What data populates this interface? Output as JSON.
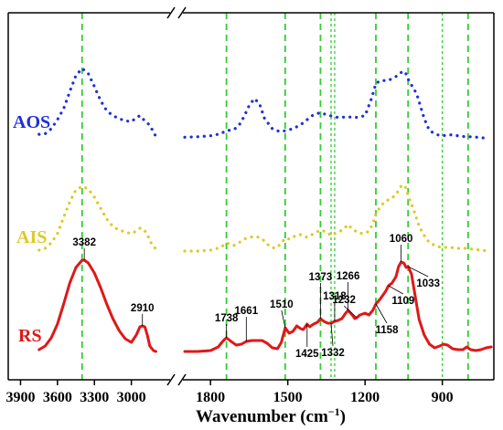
{
  "chart_data": {
    "type": "line",
    "title": "",
    "xlabel": "Wavenumber (cm",
    "xlabel_sup": "−1",
    "xlabel_close": ")",
    "ylabel": "",
    "x_reversed": true,
    "x_break": true,
    "x_segments": [
      {
        "xlim": [
          4000,
          2700
        ],
        "ticks": [
          3900,
          3600,
          3300,
          3000
        ]
      },
      {
        "xlim": [
          1900,
          700
        ],
        "ticks": [
          1800,
          1500,
          1200,
          900
        ]
      }
    ],
    "tick_labels": [
      "3900",
      "3600",
      "3300",
      "3000",
      "1800",
      "1500",
      "1200",
      "900"
    ],
    "grid": false,
    "legend": "inline-left",
    "reference_lines": {
      "color": "#33cc33",
      "x": [
        3400,
        1738,
        1510,
        1373,
        1332,
        1318,
        1158,
        1033,
        900,
        800
      ]
    },
    "series": [
      {
        "name": "AOS",
        "color": "#1f2fd8",
        "style": "dotted",
        "points": [
          [
            3750,
            0.045
          ],
          [
            3700,
            0.05
          ],
          [
            3650,
            0.1
          ],
          [
            3600,
            0.19
          ],
          [
            3550,
            0.3
          ],
          [
            3500,
            0.47
          ],
          [
            3450,
            0.63
          ],
          [
            3400,
            0.7
          ],
          [
            3350,
            0.65
          ],
          [
            3300,
            0.52
          ],
          [
            3250,
            0.38
          ],
          [
            3200,
            0.28
          ],
          [
            3150,
            0.23
          ],
          [
            3100,
            0.2
          ],
          [
            3050,
            0.18
          ],
          [
            3000,
            0.17
          ],
          [
            2960,
            0.21
          ],
          [
            2930,
            0.23
          ],
          [
            2900,
            0.19
          ],
          [
            2870,
            0.16
          ],
          [
            2850,
            0.13
          ],
          [
            2820,
            0.07
          ],
          [
            2800,
            0.02
          ],
          [
            1900,
            0.015
          ],
          [
            1850,
            0.02
          ],
          [
            1800,
            0.03
          ],
          [
            1760,
            0.05
          ],
          [
            1740,
            0.08
          ],
          [
            1710,
            0.09
          ],
          [
            1690,
            0.13
          ],
          [
            1670,
            0.22
          ],
          [
            1650,
            0.33
          ],
          [
            1630,
            0.4
          ],
          [
            1610,
            0.35
          ],
          [
            1590,
            0.2
          ],
          [
            1560,
            0.1
          ],
          [
            1530,
            0.07
          ],
          [
            1510,
            0.08
          ],
          [
            1480,
            0.1
          ],
          [
            1450,
            0.14
          ],
          [
            1420,
            0.2
          ],
          [
            1400,
            0.24
          ],
          [
            1373,
            0.26
          ],
          [
            1350,
            0.24
          ],
          [
            1320,
            0.22
          ],
          [
            1300,
            0.21
          ],
          [
            1270,
            0.22
          ],
          [
            1240,
            0.21
          ],
          [
            1200,
            0.23
          ],
          [
            1175,
            0.4
          ],
          [
            1158,
            0.55
          ],
          [
            1140,
            0.58
          ],
          [
            1110,
            0.58
          ],
          [
            1080,
            0.62
          ],
          [
            1060,
            0.66
          ],
          [
            1045,
            0.67
          ],
          [
            1030,
            0.58
          ],
          [
            1000,
            0.45
          ],
          [
            970,
            0.2
          ],
          [
            950,
            0.08
          ],
          [
            920,
            0.04
          ],
          [
            900,
            0.03
          ],
          [
            870,
            0.04
          ],
          [
            840,
            0.03
          ],
          [
            810,
            0.02
          ],
          [
            780,
            0.02
          ],
          [
            750,
            0.01
          ],
          [
            720,
            0.005
          ]
        ]
      },
      {
        "name": "AIS",
        "color": "#e0c828",
        "style": "dotted",
        "points": [
          [
            3750,
            0.02
          ],
          [
            3700,
            0.04
          ],
          [
            3650,
            0.1
          ],
          [
            3600,
            0.2
          ],
          [
            3550,
            0.38
          ],
          [
            3500,
            0.55
          ],
          [
            3450,
            0.68
          ],
          [
            3400,
            0.72
          ],
          [
            3350,
            0.69
          ],
          [
            3300,
            0.6
          ],
          [
            3250,
            0.48
          ],
          [
            3200,
            0.36
          ],
          [
            3150,
            0.28
          ],
          [
            3100,
            0.24
          ],
          [
            3050,
            0.22
          ],
          [
            3000,
            0.2
          ],
          [
            2960,
            0.23
          ],
          [
            2930,
            0.26
          ],
          [
            2900,
            0.25
          ],
          [
            2870,
            0.19
          ],
          [
            2840,
            0.1
          ],
          [
            2800,
            0.03
          ],
          [
            1900,
            0.01
          ],
          [
            1850,
            0.01
          ],
          [
            1800,
            0.02
          ],
          [
            1760,
            0.05
          ],
          [
            1738,
            0.1
          ],
          [
            1710,
            0.07
          ],
          [
            1690,
            0.1
          ],
          [
            1670,
            0.14
          ],
          [
            1650,
            0.16
          ],
          [
            1630,
            0.17
          ],
          [
            1610,
            0.16
          ],
          [
            1590,
            0.12
          ],
          [
            1570,
            0.06
          ],
          [
            1550,
            0.04
          ],
          [
            1530,
            0.08
          ],
          [
            1510,
            0.15
          ],
          [
            1490,
            0.14
          ],
          [
            1470,
            0.18
          ],
          [
            1450,
            0.19
          ],
          [
            1425,
            0.16
          ],
          [
            1400,
            0.2
          ],
          [
            1373,
            0.24
          ],
          [
            1350,
            0.22
          ],
          [
            1332,
            0.18
          ],
          [
            1318,
            0.2
          ],
          [
            1300,
            0.22
          ],
          [
            1280,
            0.26
          ],
          [
            1266,
            0.3
          ],
          [
            1250,
            0.25
          ],
          [
            1232,
            0.22
          ],
          [
            1210,
            0.2
          ],
          [
            1190,
            0.22
          ],
          [
            1170,
            0.3
          ],
          [
            1158,
            0.42
          ],
          [
            1140,
            0.5
          ],
          [
            1120,
            0.56
          ],
          [
            1100,
            0.58
          ],
          [
            1080,
            0.63
          ],
          [
            1060,
            0.72
          ],
          [
            1045,
            0.73
          ],
          [
            1033,
            0.62
          ],
          [
            1010,
            0.45
          ],
          [
            990,
            0.28
          ],
          [
            970,
            0.18
          ],
          [
            950,
            0.1
          ],
          [
            920,
            0.06
          ],
          [
            900,
            0.05
          ],
          [
            870,
            0.05
          ],
          [
            840,
            0.04
          ],
          [
            810,
            0.04
          ],
          [
            780,
            0.03
          ],
          [
            750,
            0.02
          ],
          [
            720,
            0.01
          ]
        ]
      },
      {
        "name": "RS",
        "color": "#e01818",
        "style": "solid",
        "points": [
          [
            3750,
            0.02
          ],
          [
            3700,
            0.06
          ],
          [
            3650,
            0.15
          ],
          [
            3600,
            0.3
          ],
          [
            3550,
            0.52
          ],
          [
            3500,
            0.75
          ],
          [
            3450,
            0.92
          ],
          [
            3400,
            1.0
          ],
          [
            3382,
            1.0
          ],
          [
            3350,
            0.97
          ],
          [
            3300,
            0.86
          ],
          [
            3250,
            0.7
          ],
          [
            3200,
            0.52
          ],
          [
            3150,
            0.36
          ],
          [
            3100,
            0.23
          ],
          [
            3050,
            0.14
          ],
          [
            3000,
            0.1
          ],
          [
            2960,
            0.18
          ],
          [
            2930,
            0.27
          ],
          [
            2910,
            0.28
          ],
          [
            2890,
            0.27
          ],
          [
            2870,
            0.18
          ],
          [
            2850,
            0.06
          ],
          [
            2820,
            0.01
          ],
          [
            2800,
            0.0
          ],
          [
            1900,
            0.0
          ],
          [
            1850,
            0.0
          ],
          [
            1800,
            0.01
          ],
          [
            1770,
            0.05
          ],
          [
            1750,
            0.12
          ],
          [
            1738,
            0.15
          ],
          [
            1720,
            0.11
          ],
          [
            1700,
            0.07
          ],
          [
            1680,
            0.08
          ],
          [
            1661,
            0.11
          ],
          [
            1640,
            0.12
          ],
          [
            1620,
            0.12
          ],
          [
            1600,
            0.12
          ],
          [
            1580,
            0.09
          ],
          [
            1560,
            0.04
          ],
          [
            1540,
            0.03
          ],
          [
            1525,
            0.1
          ],
          [
            1510,
            0.26
          ],
          [
            1495,
            0.2
          ],
          [
            1480,
            0.22
          ],
          [
            1465,
            0.28
          ],
          [
            1450,
            0.25
          ],
          [
            1440,
            0.24
          ],
          [
            1425,
            0.3
          ],
          [
            1415,
            0.27
          ],
          [
            1400,
            0.3
          ],
          [
            1385,
            0.32
          ],
          [
            1373,
            0.36
          ],
          [
            1360,
            0.33
          ],
          [
            1345,
            0.31
          ],
          [
            1332,
            0.31
          ],
          [
            1318,
            0.33
          ],
          [
            1305,
            0.34
          ],
          [
            1290,
            0.36
          ],
          [
            1275,
            0.42
          ],
          [
            1266,
            0.45
          ],
          [
            1250,
            0.4
          ],
          [
            1240,
            0.36
          ],
          [
            1232,
            0.37
          ],
          [
            1220,
            0.4
          ],
          [
            1200,
            0.42
          ],
          [
            1185,
            0.4
          ],
          [
            1170,
            0.45
          ],
          [
            1158,
            0.52
          ],
          [
            1140,
            0.58
          ],
          [
            1120,
            0.66
          ],
          [
            1109,
            0.72
          ],
          [
            1095,
            0.75
          ],
          [
            1080,
            0.82
          ],
          [
            1070,
            0.93
          ],
          [
            1060,
            0.98
          ],
          [
            1050,
            0.97
          ],
          [
            1040,
            0.92
          ],
          [
            1033,
            0.93
          ],
          [
            1020,
            0.85
          ],
          [
            1005,
            0.6
          ],
          [
            990,
            0.35
          ],
          [
            970,
            0.18
          ],
          [
            950,
            0.08
          ],
          [
            930,
            0.04
          ],
          [
            910,
            0.06
          ],
          [
            895,
            0.08
          ],
          [
            880,
            0.07
          ],
          [
            860,
            0.03
          ],
          [
            840,
            0.02
          ],
          [
            820,
            0.02
          ],
          [
            805,
            0.05
          ],
          [
            790,
            0.02
          ],
          [
            770,
            0.01
          ],
          [
            750,
            0.02
          ],
          [
            730,
            0.04
          ],
          [
            710,
            0.05
          ]
        ]
      }
    ],
    "peak_labels": [
      {
        "text": "3382",
        "x": 3382,
        "series": "RS",
        "y": 1.0,
        "dx": 0,
        "dy": -16,
        "anchor": "middle"
      },
      {
        "text": "2910",
        "x": 2910,
        "series": "RS",
        "y": 0.28,
        "dx": 0,
        "dy": -16,
        "anchor": "middle"
      },
      {
        "text": "1738",
        "x": 1738,
        "series": "RS",
        "y": 0.15,
        "dx": 0,
        "dy": -18,
        "anchor": "middle"
      },
      {
        "text": "1661",
        "x": 1661,
        "series": "RS",
        "y": 0.11,
        "dx": 0,
        "dy": -30,
        "anchor": "middle"
      },
      {
        "text": "1510",
        "x": 1510,
        "series": "RS",
        "y": 0.26,
        "dx": -4,
        "dy": -22,
        "anchor": "middle"
      },
      {
        "text": "1425",
        "x": 1425,
        "series": "RS",
        "y": 0.3,
        "dx": 0,
        "dy": 36,
        "anchor": "middle"
      },
      {
        "text": "1373",
        "x": 1373,
        "series": "RS",
        "y": 0.36,
        "dx": 0,
        "dy": -42,
        "anchor": "middle"
      },
      {
        "text": "1318",
        "x": 1318,
        "series": "RS",
        "y": 0.33,
        "dx": 0,
        "dy": -24,
        "anchor": "middle"
      },
      {
        "text": "1332",
        "x": 1332,
        "series": "RS",
        "y": 0.31,
        "dx": 2,
        "dy": 36,
        "anchor": "middle"
      },
      {
        "text": "1266",
        "x": 1266,
        "series": "RS",
        "y": 0.45,
        "dx": 0,
        "dy": -34,
        "anchor": "middle"
      },
      {
        "text": "1232",
        "x": 1232,
        "series": "RS",
        "y": 0.37,
        "dx": -14,
        "dy": -16,
        "anchor": "middle"
      },
      {
        "text": "1158",
        "x": 1158,
        "series": "RS",
        "y": 0.52,
        "dx": 12,
        "dy": 32,
        "anchor": "middle"
      },
      {
        "text": "1109",
        "x": 1109,
        "series": "RS",
        "y": 0.72,
        "dx": 16,
        "dy": 20,
        "anchor": "middle"
      },
      {
        "text": "1060",
        "x": 1060,
        "series": "RS",
        "y": 0.98,
        "dx": 0,
        "dy": -22,
        "anchor": "middle"
      },
      {
        "text": "1033",
        "x": 1033,
        "series": "RS",
        "y": 0.93,
        "dx": 22,
        "dy": 22,
        "anchor": "middle"
      }
    ]
  }
}
